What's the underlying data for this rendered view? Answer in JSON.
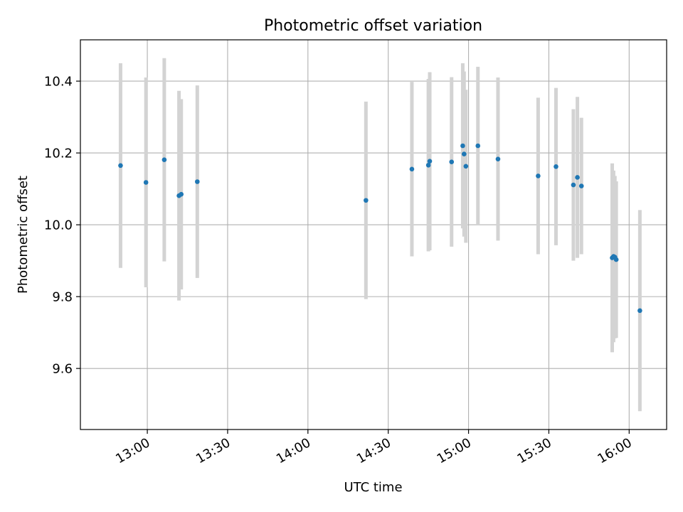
{
  "chart_data": {
    "type": "scatter",
    "title": "Photometric offset variation",
    "xlabel": "UTC time",
    "ylabel": "Photometric offset",
    "x_ticks": [
      "13:00",
      "13:30",
      "14:00",
      "14:30",
      "15:00",
      "15:30",
      "16:00"
    ],
    "y_ticks": [
      "9.6",
      "9.8",
      "10.0",
      "10.2",
      "10.4"
    ],
    "xlim": [
      "12:35",
      "16:14"
    ],
    "ylim": [
      9.43,
      10.515
    ],
    "grid": true,
    "point_color": "#1f77b4",
    "errorbar_color": "#d3d3d3",
    "series": [
      {
        "points": [
          {
            "x": "12:50:00",
            "y": 10.165,
            "err": 0.285
          },
          {
            "x": "12:59:30",
            "y": 10.118,
            "err": 0.292
          },
          {
            "x": "13:06:20",
            "y": 10.181,
            "err": 0.283
          },
          {
            "x": "13:11:50",
            "y": 10.081,
            "err": 0.292
          },
          {
            "x": "13:12:40",
            "y": 10.085,
            "err": 0.265
          },
          {
            "x": "13:18:40",
            "y": 10.12,
            "err": 0.268
          },
          {
            "x": "14:21:40",
            "y": 10.068,
            "err": 0.275
          },
          {
            "x": "14:38:50",
            "y": 10.155,
            "err": 0.243
          },
          {
            "x": "14:45:00",
            "y": 10.166,
            "err": 0.24
          },
          {
            "x": "14:45:30",
            "y": 10.177,
            "err": 0.248
          },
          {
            "x": "14:53:40",
            "y": 10.175,
            "err": 0.236
          },
          {
            "x": "14:57:50",
            "y": 10.22,
            "err": 0.23
          },
          {
            "x": "14:58:20",
            "y": 10.197,
            "err": 0.23
          },
          {
            "x": "14:59:00",
            "y": 10.163,
            "err": 0.213
          },
          {
            "x": "15:03:30",
            "y": 10.22,
            "err": 0.22
          },
          {
            "x": "15:11:00",
            "y": 10.183,
            "err": 0.227
          },
          {
            "x": "15:26:00",
            "y": 10.136,
            "err": 0.218
          },
          {
            "x": "15:32:40",
            "y": 10.162,
            "err": 0.219
          },
          {
            "x": "15:39:10",
            "y": 10.111,
            "err": 0.211
          },
          {
            "x": "15:40:40",
            "y": 10.132,
            "err": 0.224
          },
          {
            "x": "15:42:10",
            "y": 10.108,
            "err": 0.19
          },
          {
            "x": "15:53:40",
            "y": 9.908,
            "err": 0.263
          },
          {
            "x": "15:54:10",
            "y": 9.912,
            "err": 0.239
          },
          {
            "x": "15:54:40",
            "y": 9.91,
            "err": 0.226
          },
          {
            "x": "15:55:10",
            "y": 9.903,
            "err": 0.218
          },
          {
            "x": "16:04:00",
            "y": 9.761,
            "err": 0.28
          }
        ]
      }
    ]
  }
}
